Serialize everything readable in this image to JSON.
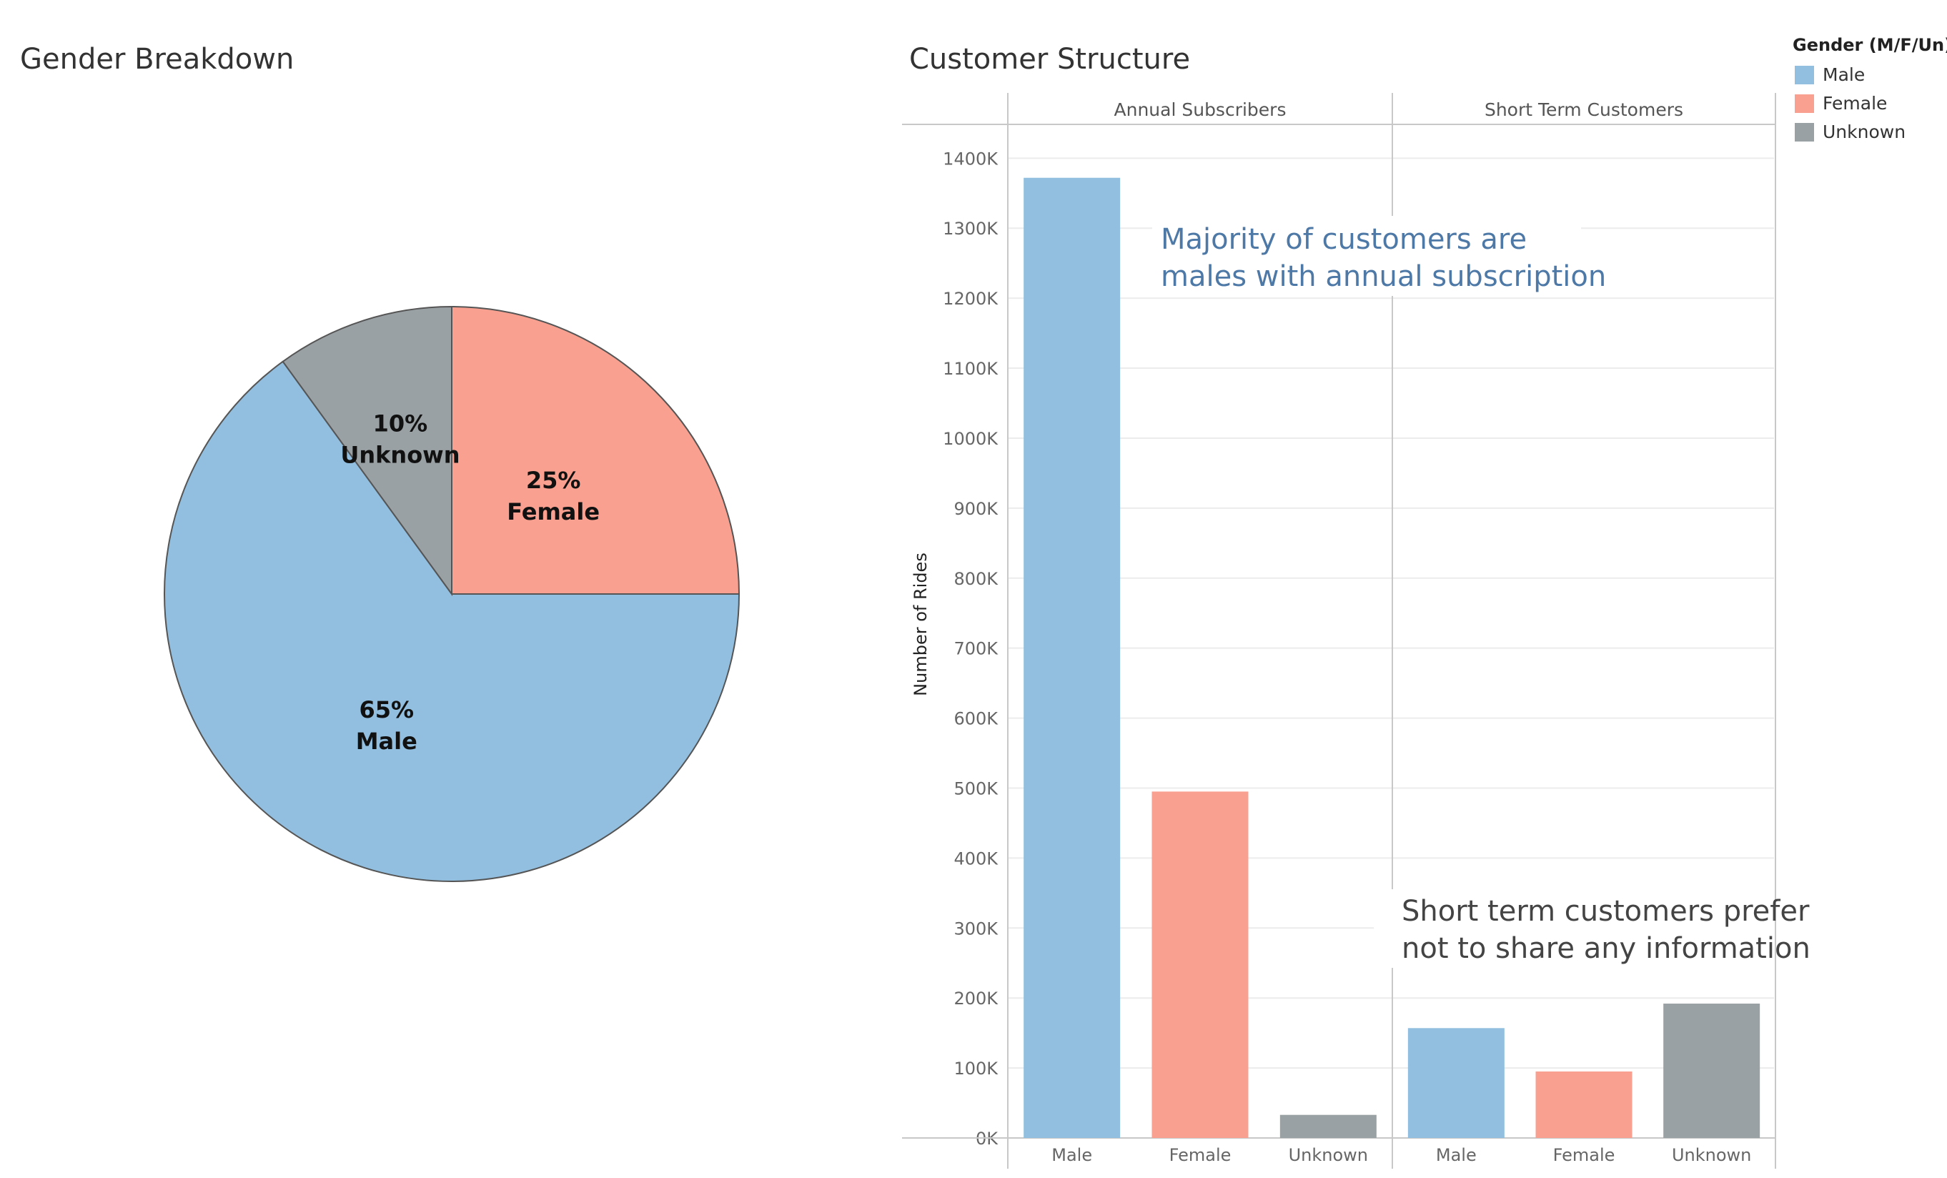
{
  "left_panel": {
    "title": "Gender Breakdown"
  },
  "right_panel": {
    "title": "Customer Structure",
    "annotation_majority": [
      "Majority of customers are",
      "males with annual subscription"
    ],
    "annotation_short_term": [
      "Short term customers prefer",
      "not to share any information"
    ]
  },
  "legend": {
    "title": "Gender (M/F/Un)",
    "items": [
      {
        "label": "Male",
        "color": "#92bfdf"
      },
      {
        "label": "Female",
        "color": "#f9a090"
      },
      {
        "label": "Unknown",
        "color": "#9aa1a4"
      }
    ]
  },
  "chart_data": [
    {
      "type": "pie",
      "title": "Gender Breakdown",
      "slices": [
        {
          "label": "Female",
          "value": 25,
          "display": "25%",
          "color": "#f9a090"
        },
        {
          "label": "Male",
          "value": 65,
          "display": "65%",
          "color": "#92bfdf"
        },
        {
          "label": "Unknown",
          "value": 10,
          "display": "10%",
          "color": "#9aa1a4"
        }
      ]
    },
    {
      "type": "bar",
      "title": "Customer Structure",
      "ylabel": "Number of Rides",
      "ylim": [
        0,
        1400000
      ],
      "y_ticks": [
        0,
        100000,
        200000,
        300000,
        400000,
        500000,
        600000,
        700000,
        800000,
        900000,
        1000000,
        1100000,
        1200000,
        1300000,
        1400000
      ],
      "y_tick_labels": [
        "0K",
        "100K",
        "200K",
        "300K",
        "400K",
        "500K",
        "600K",
        "700K",
        "800K",
        "900K",
        "1000K",
        "1100K",
        "1200K",
        "1300K",
        "1400K"
      ],
      "grid": true,
      "legend_position": "top-right",
      "panels": [
        {
          "name": "Annual Subscribers",
          "categories": [
            "Male",
            "Female",
            "Unknown"
          ],
          "values": [
            1372000,
            495000,
            33000
          ],
          "colors": [
            "#92bfdf",
            "#f9a090",
            "#9aa1a4"
          ]
        },
        {
          "name": "Short Term Customers",
          "categories": [
            "Male",
            "Female",
            "Unknown"
          ],
          "values": [
            157000,
            95000,
            192000
          ],
          "colors": [
            "#92bfdf",
            "#f9a090",
            "#9aa1a4"
          ]
        }
      ]
    }
  ]
}
